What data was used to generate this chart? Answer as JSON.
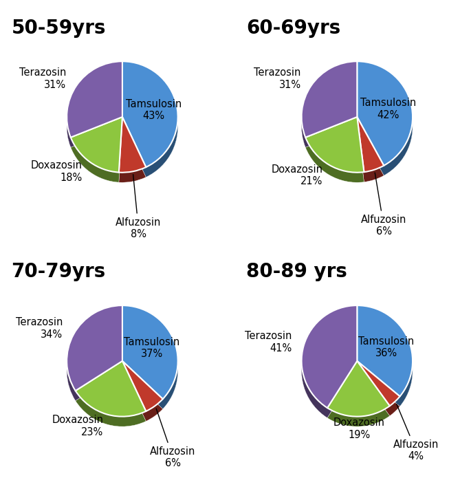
{
  "charts": [
    {
      "title": "50-59yrs",
      "values": [
        43,
        8,
        18,
        31
      ],
      "colors": [
        "#4B8FD4",
        "#C0392B",
        "#8DC63F",
        "#7B5EA7"
      ],
      "labels": [
        "Tamsulosin",
        "Alfuzosin",
        "Doxazosin",
        "Terazosin"
      ],
      "inside": [
        true,
        false,
        false,
        false
      ],
      "arrow": [
        false,
        true,
        false,
        false
      ]
    },
    {
      "title": "60-69yrs",
      "values": [
        42,
        6,
        21,
        31
      ],
      "colors": [
        "#4B8FD4",
        "#C0392B",
        "#8DC63F",
        "#7B5EA7"
      ],
      "labels": [
        "Tamsulosin",
        "Alfuzosin",
        "Doxazosin",
        "Terazosin"
      ],
      "inside": [
        true,
        false,
        false,
        false
      ],
      "arrow": [
        false,
        true,
        false,
        false
      ]
    },
    {
      "title": "70-79yrs",
      "values": [
        37,
        6,
        23,
        34
      ],
      "colors": [
        "#4B8FD4",
        "#C0392B",
        "#8DC63F",
        "#7B5EA7"
      ],
      "labels": [
        "Tamsulosin",
        "Alfuzosin",
        "Doxazosin",
        "Terazosin"
      ],
      "inside": [
        true,
        false,
        false,
        false
      ],
      "arrow": [
        false,
        true,
        false,
        false
      ]
    },
    {
      "title": "80-89 yrs",
      "values": [
        36,
        4,
        19,
        41
      ],
      "colors": [
        "#4B8FD4",
        "#C0392B",
        "#8DC63F",
        "#7B5EA7"
      ],
      "labels": [
        "Tamsulosin",
        "Alfuzosin",
        "Doxazosin",
        "Terazosin"
      ],
      "inside": [
        true,
        false,
        false,
        false
      ],
      "arrow": [
        false,
        true,
        false,
        false
      ]
    }
  ],
  "title_fontsize": 20,
  "label_fontsize": 10.5,
  "bg_color": "#FFFFFF"
}
